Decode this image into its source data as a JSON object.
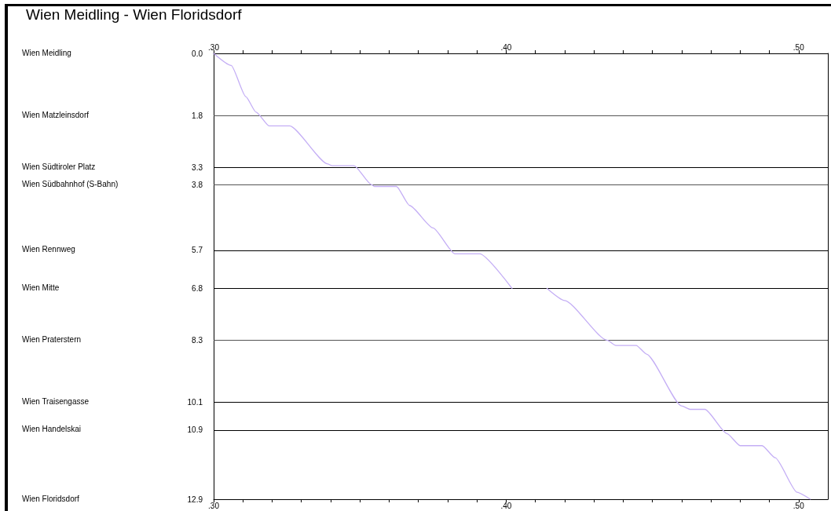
{
  "chart_data": {
    "type": "line",
    "title": "Wien Meidling - Wien Floridsdorf",
    "x": [
      0.3,
      0.306,
      0.311,
      0.3145,
      0.319,
      0.326,
      0.339,
      0.3405,
      0.348,
      0.354,
      0.355,
      0.3625,
      0.367,
      0.375,
      0.3825,
      0.391,
      0.402,
      0.408,
      0.414,
      0.42,
      0.4345,
      0.4375,
      0.4445,
      0.448,
      0.46,
      0.463,
      0.468,
      0.4755,
      0.48,
      0.4875,
      0.492,
      0.4995,
      0.504
    ],
    "series": [
      {
        "color": "#c4aef5",
        "values": [
          0,
          0.35,
          1.25,
          1.7,
          2.1,
          2.1,
          3.2,
          3.25,
          3.25,
          3.8,
          3.85,
          3.85,
          4.4,
          5.05,
          5.8,
          5.8,
          6.8,
          null,
          6.8,
          7.15,
          8.3,
          8.45,
          8.45,
          8.7,
          10.2,
          10.3,
          10.3,
          11.0,
          11.35,
          11.35,
          11.7,
          12.7,
          12.9
        ]
      }
    ],
    "xlim": [
      0.3,
      0.51
    ],
    "xticks": [
      {
        "value": 0.3,
        "label": ".30"
      },
      {
        "value": 0.31,
        "label": null
      },
      {
        "value": 0.32,
        "label": null
      },
      {
        "value": 0.33,
        "label": null
      },
      {
        "value": 0.34,
        "label": null
      },
      {
        "value": 0.35,
        "label": null
      },
      {
        "value": 0.36,
        "label": null
      },
      {
        "value": 0.37,
        "label": null
      },
      {
        "value": 0.38,
        "label": null
      },
      {
        "value": 0.39,
        "label": null
      },
      {
        "value": 0.4,
        "label": ".40"
      },
      {
        "value": 0.41,
        "label": null
      },
      {
        "value": 0.42,
        "label": null
      },
      {
        "value": 0.43,
        "label": null
      },
      {
        "value": 0.44,
        "label": null
      },
      {
        "value": 0.45,
        "label": null
      },
      {
        "value": 0.46,
        "label": null
      },
      {
        "value": 0.47,
        "label": null
      },
      {
        "value": 0.48,
        "label": null
      },
      {
        "value": 0.49,
        "label": null
      },
      {
        "value": 0.5,
        "label": ".50"
      }
    ],
    "x2lim": [
      0.3,
      0.51
    ],
    "x2ticks": [
      {
        "value": 0.3,
        "label": ".30"
      },
      {
        "value": 0.31,
        "label": null
      },
      {
        "value": 0.32,
        "label": null
      },
      {
        "value": 0.33,
        "label": null
      },
      {
        "value": 0.34,
        "label": null
      },
      {
        "value": 0.35,
        "label": null
      },
      {
        "value": 0.36,
        "label": null
      },
      {
        "value": 0.37,
        "label": null
      },
      {
        "value": 0.38,
        "label": null
      },
      {
        "value": 0.39,
        "label": null
      },
      {
        "value": 0.4,
        "label": ".40"
      },
      {
        "value": 0.41,
        "label": null
      },
      {
        "value": 0.42,
        "label": null
      },
      {
        "value": 0.43,
        "label": null
      },
      {
        "value": 0.44,
        "label": null
      },
      {
        "value": 0.45,
        "label": null
      },
      {
        "value": 0.46,
        "label": null
      },
      {
        "value": 0.47,
        "label": null
      },
      {
        "value": 0.48,
        "label": null
      },
      {
        "value": 0.49,
        "label": null
      },
      {
        "value": 0.5,
        "label": ".50"
      }
    ],
    "ylim": [
      12.9,
      0
    ],
    "yticks": [
      {
        "value": 0,
        "label": "0.0"
      },
      1.8,
      3.3,
      3.8,
      5.7,
      6.8,
      8.3,
      10.1,
      10.9,
      12.9
    ],
    "ref_lines": [
      {
        "axis": "y",
        "value": 1.8,
        "color": "#555555"
      },
      {
        "axis": "y",
        "value": 3.3,
        "color": "#000000"
      },
      {
        "axis": "y",
        "value": 3.8,
        "color": "#555555"
      },
      {
        "axis": "y",
        "value": 5.7,
        "color": "#000000"
      },
      {
        "axis": "y",
        "value": 6.8,
        "color": "#000000"
      },
      {
        "axis": "y",
        "value": 8.3,
        "color": "#555555"
      },
      {
        "axis": "y",
        "value": 10.1,
        "color": "#000000"
      },
      {
        "axis": "y",
        "value": 10.9,
        "color": "#000000"
      }
    ],
    "annotations": [
      "Wien Meidling",
      "Wien Matzleinsdorf",
      "Wien Südtiroler Platz",
      "Wien Südbahnhof (S-Bahn)",
      "Wien Rennweg",
      "Wien Mitte",
      "Wien Praterstern",
      "Wien Traisengasse",
      "Wien Handelskai",
      "Wien Floridsdorf"
    ],
    "grid": false,
    "marker": "none",
    "line_style": "solid"
  }
}
